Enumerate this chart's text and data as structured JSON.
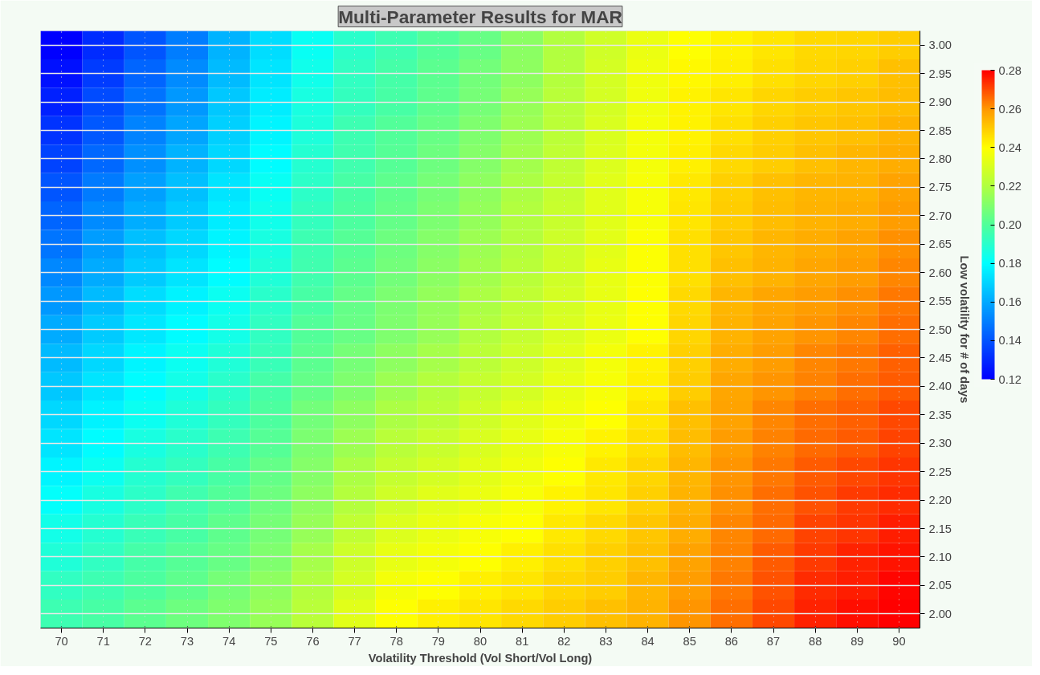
{
  "chart_data": {
    "type": "heatmap",
    "title": "Multi-Parameter Results for MAR",
    "xlabel": "Volatility Threshold (Vol Short/Vol Long)",
    "ylabel": "Low volatility for # of days",
    "categories": [
      "70",
      "71",
      "72",
      "73",
      "74",
      "75",
      "76",
      "77",
      "78",
      "79",
      "80",
      "81",
      "82",
      "83",
      "84",
      "85",
      "86",
      "87",
      "88",
      "89",
      "90"
    ],
    "y_categories": [
      "3.00",
      "2.95",
      "2.90",
      "2.85",
      "2.80",
      "2.75",
      "2.70",
      "2.65",
      "2.60",
      "2.55",
      "2.50",
      "2.45",
      "2.40",
      "2.35",
      "2.30",
      "2.25",
      "2.20",
      "2.15",
      "2.10",
      "2.05",
      "2.00"
    ],
    "cells": [
      [
        0.12,
        0.13,
        0.14,
        0.15,
        0.162,
        0.172,
        0.182,
        0.19,
        0.195,
        0.2,
        0.205,
        0.212,
        0.22,
        0.228,
        0.235,
        0.24,
        0.242,
        0.245,
        0.247,
        0.248,
        0.25
      ],
      [
        0.124,
        0.134,
        0.144,
        0.153,
        0.164,
        0.174,
        0.184,
        0.192,
        0.197,
        0.202,
        0.207,
        0.213,
        0.221,
        0.229,
        0.236,
        0.241,
        0.243,
        0.246,
        0.248,
        0.249,
        0.252
      ],
      [
        0.128,
        0.138,
        0.147,
        0.156,
        0.167,
        0.176,
        0.186,
        0.193,
        0.198,
        0.203,
        0.208,
        0.215,
        0.222,
        0.229,
        0.236,
        0.242,
        0.245,
        0.248,
        0.25,
        0.251,
        0.253
      ],
      [
        0.132,
        0.141,
        0.151,
        0.159,
        0.169,
        0.178,
        0.187,
        0.195,
        0.2,
        0.205,
        0.21,
        0.216,
        0.223,
        0.23,
        0.237,
        0.242,
        0.246,
        0.249,
        0.251,
        0.252,
        0.255
      ],
      [
        0.136,
        0.145,
        0.154,
        0.162,
        0.171,
        0.18,
        0.189,
        0.196,
        0.201,
        0.206,
        0.211,
        0.217,
        0.224,
        0.231,
        0.237,
        0.243,
        0.247,
        0.25,
        0.252,
        0.254,
        0.256
      ],
      [
        0.14,
        0.149,
        0.158,
        0.165,
        0.174,
        0.182,
        0.191,
        0.198,
        0.203,
        0.208,
        0.213,
        0.219,
        0.225,
        0.232,
        0.238,
        0.244,
        0.249,
        0.252,
        0.254,
        0.255,
        0.258
      ],
      [
        0.144,
        0.153,
        0.161,
        0.168,
        0.176,
        0.184,
        0.193,
        0.199,
        0.204,
        0.209,
        0.214,
        0.22,
        0.226,
        0.232,
        0.238,
        0.245,
        0.25,
        0.253,
        0.255,
        0.256,
        0.259
      ],
      [
        0.148,
        0.157,
        0.165,
        0.171,
        0.178,
        0.186,
        0.195,
        0.201,
        0.206,
        0.211,
        0.216,
        0.221,
        0.227,
        0.233,
        0.239,
        0.246,
        0.251,
        0.254,
        0.256,
        0.258,
        0.261
      ],
      [
        0.152,
        0.16,
        0.168,
        0.174,
        0.18,
        0.188,
        0.196,
        0.202,
        0.207,
        0.212,
        0.217,
        0.222,
        0.228,
        0.234,
        0.239,
        0.246,
        0.252,
        0.255,
        0.257,
        0.259,
        0.262
      ],
      [
        0.156,
        0.164,
        0.172,
        0.177,
        0.183,
        0.19,
        0.198,
        0.204,
        0.209,
        0.214,
        0.219,
        0.224,
        0.229,
        0.234,
        0.24,
        0.247,
        0.254,
        0.257,
        0.259,
        0.261,
        0.264
      ],
      [
        0.16,
        0.168,
        0.175,
        0.18,
        0.185,
        0.192,
        0.2,
        0.205,
        0.21,
        0.215,
        0.22,
        0.225,
        0.23,
        0.235,
        0.24,
        0.248,
        0.255,
        0.258,
        0.26,
        0.262,
        0.265
      ],
      [
        0.164,
        0.171,
        0.178,
        0.183,
        0.188,
        0.194,
        0.202,
        0.208,
        0.213,
        0.218,
        0.223,
        0.227,
        0.232,
        0.237,
        0.242,
        0.249,
        0.256,
        0.259,
        0.262,
        0.264,
        0.267
      ],
      [
        0.167,
        0.174,
        0.18,
        0.185,
        0.19,
        0.197,
        0.204,
        0.21,
        0.216,
        0.221,
        0.225,
        0.229,
        0.234,
        0.238,
        0.243,
        0.25,
        0.257,
        0.26,
        0.263,
        0.265,
        0.268
      ],
      [
        0.171,
        0.177,
        0.183,
        0.188,
        0.193,
        0.199,
        0.207,
        0.213,
        0.219,
        0.223,
        0.228,
        0.232,
        0.236,
        0.24,
        0.245,
        0.252,
        0.258,
        0.262,
        0.265,
        0.267,
        0.27
      ],
      [
        0.174,
        0.18,
        0.186,
        0.19,
        0.195,
        0.201,
        0.209,
        0.216,
        0.222,
        0.226,
        0.23,
        0.234,
        0.238,
        0.242,
        0.246,
        0.253,
        0.259,
        0.263,
        0.266,
        0.268,
        0.271
      ],
      [
        0.178,
        0.183,
        0.189,
        0.193,
        0.198,
        0.204,
        0.211,
        0.219,
        0.225,
        0.229,
        0.233,
        0.236,
        0.24,
        0.244,
        0.248,
        0.254,
        0.26,
        0.264,
        0.268,
        0.27,
        0.273
      ],
      [
        0.181,
        0.186,
        0.191,
        0.196,
        0.2,
        0.206,
        0.213,
        0.221,
        0.228,
        0.232,
        0.235,
        0.238,
        0.242,
        0.245,
        0.249,
        0.255,
        0.261,
        0.265,
        0.269,
        0.272,
        0.274
      ],
      [
        0.185,
        0.189,
        0.194,
        0.198,
        0.203,
        0.208,
        0.215,
        0.224,
        0.231,
        0.235,
        0.238,
        0.24,
        0.244,
        0.247,
        0.251,
        0.256,
        0.262,
        0.266,
        0.271,
        0.273,
        0.276
      ],
      [
        0.188,
        0.192,
        0.197,
        0.201,
        0.205,
        0.21,
        0.218,
        0.227,
        0.234,
        0.237,
        0.24,
        0.243,
        0.246,
        0.249,
        0.252,
        0.258,
        0.263,
        0.268,
        0.272,
        0.275,
        0.277
      ],
      [
        0.192,
        0.195,
        0.199,
        0.203,
        0.208,
        0.213,
        0.22,
        0.229,
        0.237,
        0.24,
        0.243,
        0.245,
        0.248,
        0.25,
        0.254,
        0.259,
        0.264,
        0.269,
        0.274,
        0.276,
        0.279
      ],
      [
        0.195,
        0.198,
        0.202,
        0.206,
        0.21,
        0.215,
        0.222,
        0.232,
        0.24,
        0.243,
        0.245,
        0.247,
        0.25,
        0.252,
        0.255,
        0.26,
        0.265,
        0.27,
        0.275,
        0.278,
        0.28
      ]
    ],
    "clim": [
      0.12,
      0.28
    ],
    "cticks": [
      0.12,
      0.14,
      0.16,
      0.18,
      {
        "value": 0.2,
        "label": "0.20"
      },
      0.22,
      0.24,
      0.26,
      0.28
    ],
    "grid": true
  }
}
